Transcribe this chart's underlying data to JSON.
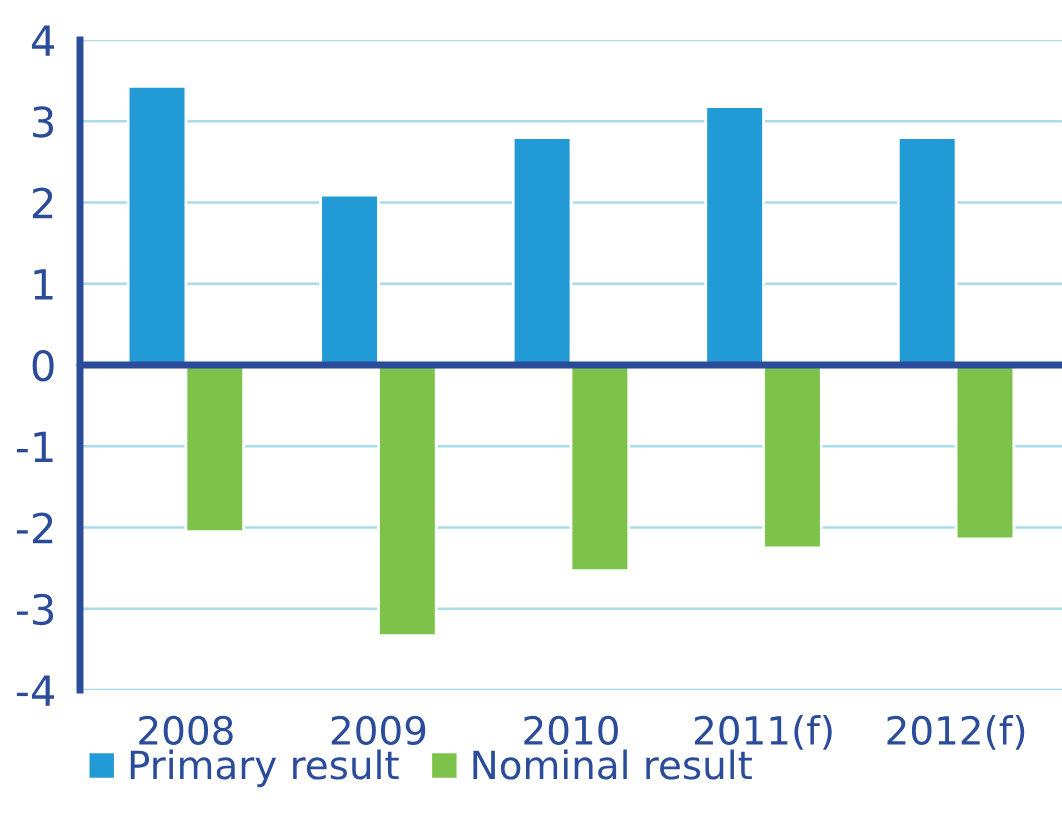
{
  "chart_data": {
    "type": "bar",
    "categories": [
      "2008",
      "2009",
      "2010",
      "2011(f)",
      "2012(f)"
    ],
    "series": [
      {
        "name": "Primary result",
        "color": "#229ad6",
        "values": [
          3.43,
          2.09,
          2.8,
          3.18,
          2.8
        ]
      },
      {
        "name": "Nominal result",
        "color": "#7dc24b",
        "values": [
          -2.05,
          -3.33,
          -2.53,
          -2.25,
          -2.14
        ]
      }
    ],
    "ylim": [
      -4,
      4
    ],
    "yticks": [
      {
        "value": -4,
        "label": "-4"
      },
      {
        "value": -3,
        "label": "-3"
      },
      {
        "value": -2,
        "label": "-2"
      },
      {
        "value": -1,
        "label": "-1"
      },
      0,
      1,
      2,
      3,
      4
    ],
    "ref_lines": [
      {
        "axis": "y",
        "value": 0,
        "color": "#2b4c9a"
      }
    ],
    "grid": "y",
    "legend": "bottom left"
  }
}
